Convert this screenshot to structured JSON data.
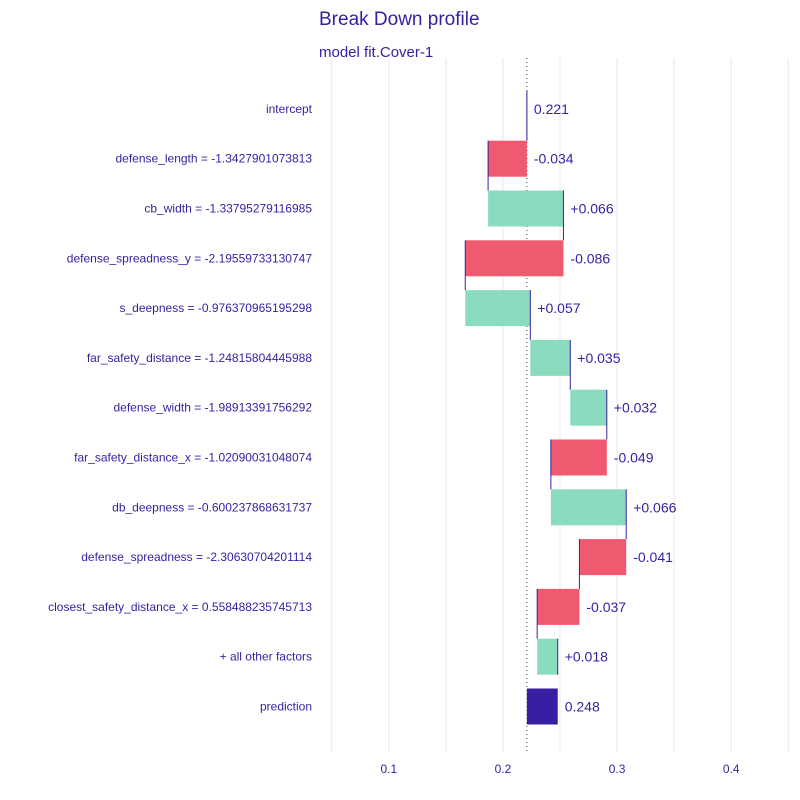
{
  "chart_data": {
    "type": "bar",
    "subtype": "break-down-waterfall",
    "title": "Break Down profile",
    "subtitle": "model  fit.Cover-1",
    "xlim": [
      0.0485,
      0.4515
    ],
    "x_ticks": [
      0.1,
      0.2,
      0.3,
      0.4
    ],
    "x_tick_labels": [
      "0.1",
      "0.2",
      "0.3",
      "0.4"
    ],
    "grid": true,
    "baseline": 0.221,
    "colors": {
      "positive": "#8bdcbe",
      "negative": "#f05a71",
      "prediction": "#371ea3",
      "text": "#371ea3",
      "grid": "#e8e8ee"
    },
    "rows": [
      {
        "label": "intercept",
        "start": 0.221,
        "end": 0.221,
        "value_label": "0.221",
        "sign": "intercept"
      },
      {
        "label": "defense_length = -1.3427901073813",
        "start": 0.221,
        "end": 0.187,
        "value_label": "-0.034",
        "sign": "negative"
      },
      {
        "label": "cb_width = -1.33795279116985",
        "start": 0.187,
        "end": 0.253,
        "value_label": "+0.066",
        "sign": "positive"
      },
      {
        "label": "defense_spreadness_y = -2.19559733130747",
        "start": 0.253,
        "end": 0.167,
        "value_label": "-0.086",
        "sign": "negative"
      },
      {
        "label": "s_deepness = -0.976370965195298",
        "start": 0.167,
        "end": 0.224,
        "value_label": "+0.057",
        "sign": "positive"
      },
      {
        "label": "far_safety_distance = -1.24815804445988",
        "start": 0.224,
        "end": 0.259,
        "value_label": "+0.035",
        "sign": "positive"
      },
      {
        "label": "defense_width = -1.98913391756292",
        "start": 0.259,
        "end": 0.291,
        "value_label": "+0.032",
        "sign": "positive"
      },
      {
        "label": "far_safety_distance_x = -1.02090031048074",
        "start": 0.291,
        "end": 0.242,
        "value_label": "-0.049",
        "sign": "negative"
      },
      {
        "label": "db_deepness = -0.600237868631737",
        "start": 0.242,
        "end": 0.308,
        "value_label": "+0.066",
        "sign": "positive"
      },
      {
        "label": "defense_spreadness = -2.30630704201114",
        "start": 0.308,
        "end": 0.267,
        "value_label": "-0.041",
        "sign": "negative"
      },
      {
        "label": "closest_safety_distance_x = 0.558488235745713",
        "start": 0.267,
        "end": 0.23,
        "value_label": "-0.037",
        "sign": "negative"
      },
      {
        "label": "+ all other factors",
        "start": 0.23,
        "end": 0.248,
        "value_label": "+0.018",
        "sign": "positive"
      },
      {
        "label": "prediction",
        "start": 0.221,
        "end": 0.248,
        "value_label": "0.248",
        "sign": "prediction"
      }
    ]
  }
}
